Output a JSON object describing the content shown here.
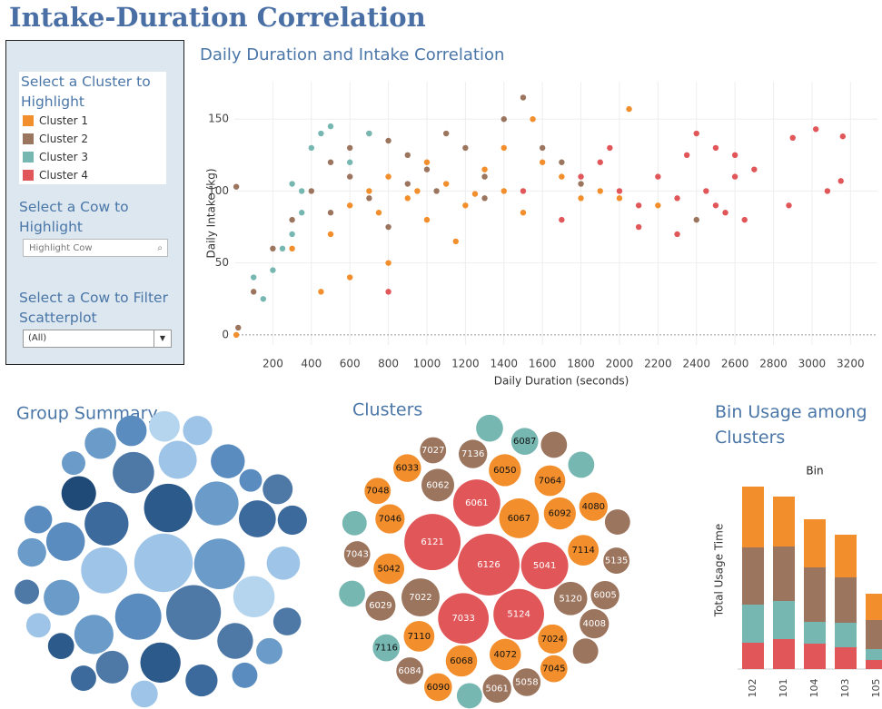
{
  "header": {
    "title": "Intake-Duration Correlation"
  },
  "filters": {
    "cluster_title": "Select a Cluster to Highlight",
    "cow_highlight_title": "Select a Cow to Highlight",
    "search_placeholder": "Highlight Cow",
    "filter_title": "Select a Cow to Filter Scatterplot",
    "filter_value": "(All)"
  },
  "chart_data": [
    {
      "type": "scatter",
      "title": "Daily Duration and Intake Correlation",
      "x_label": "Daily Duration (seconds)",
      "y_label": "Daily Intake (kg)",
      "xlim": [
        0,
        3340
      ],
      "ylim": [
        -7,
        176
      ],
      "xticks": [
        200,
        400,
        600,
        800,
        1000,
        1200,
        1400,
        1600,
        1800,
        2000,
        2200,
        2400,
        2600,
        2800,
        3000,
        3200
      ],
      "yticks": [
        0,
        50,
        100,
        150
      ],
      "grid": true,
      "series": [
        {
          "name": "Cluster 1",
          "color": "#f28e2b",
          "x": [
            10,
            300,
            500,
            600,
            700,
            800,
            900,
            1000,
            1100,
            1200,
            1300,
            1400,
            1500,
            1600,
            1700,
            1800,
            1900,
            2000,
            2050,
            1550,
            800,
            1000,
            600,
            1150,
            1400,
            2200,
            450,
            750,
            950,
            1250
          ],
          "values": [
            0,
            60,
            70,
            90,
            100,
            110,
            95,
            120,
            105,
            90,
            115,
            100,
            85,
            120,
            110,
            95,
            100,
            95,
            157,
            150,
            50,
            80,
            40,
            65,
            130,
            90,
            30,
            85,
            100,
            98
          ]
        },
        {
          "name": "Cluster 2",
          "color": "#9c755f",
          "x": [
            20,
            100,
            200,
            300,
            400,
            500,
            600,
            700,
            800,
            900,
            1000,
            1100,
            1200,
            1300,
            1400,
            1500,
            1600,
            1700,
            500,
            700,
            900,
            600,
            1800,
            2400,
            10,
            1050,
            800,
            1300
          ],
          "values": [
            5,
            30,
            60,
            80,
            100,
            120,
            130,
            140,
            135,
            125,
            115,
            140,
            130,
            110,
            150,
            165,
            130,
            120,
            85,
            95,
            105,
            110,
            105,
            80,
            103,
            100,
            75,
            95
          ]
        },
        {
          "name": "Cluster 3",
          "color": "#76b7b2",
          "x": [
            100,
            200,
            300,
            350,
            400,
            450,
            300,
            500,
            250,
            600,
            350,
            150,
            700
          ],
          "values": [
            40,
            45,
            70,
            100,
            130,
            140,
            105,
            145,
            60,
            120,
            85,
            25,
            140
          ]
        },
        {
          "name": "Cluster 4",
          "color": "#e15759",
          "x": [
            800,
            1500,
            1700,
            1800,
            1900,
            2000,
            2100,
            2200,
            2300,
            2350,
            2400,
            2450,
            2500,
            2550,
            2600,
            2650,
            2700,
            2500,
            2300,
            2900,
            2880,
            3020,
            3080,
            3160,
            3150,
            2100,
            1950,
            2600
          ],
          "values": [
            30,
            100,
            80,
            110,
            120,
            100,
            90,
            110,
            95,
            125,
            140,
            100,
            130,
            85,
            110,
            80,
            115,
            90,
            70,
            137,
            90,
            143,
            100,
            138,
            107,
            75,
            130,
            125
          ]
        }
      ]
    },
    {
      "type": "bubble",
      "title": "Group Summary",
      "values": [
        80,
        70,
        60,
        55,
        50,
        50,
        45,
        45,
        40,
        40,
        38,
        36,
        35,
        34,
        32,
        30,
        30,
        28,
        27,
        26,
        25,
        24,
        23,
        22,
        22,
        21,
        20,
        20,
        19,
        18,
        18,
        17,
        16,
        16,
        15,
        15,
        14,
        14,
        13,
        12
      ],
      "colors": [
        "#9ec5e8",
        "#4e79a7",
        "#6b9bc8",
        "#2c5a8a",
        "#5b8cbf",
        "#9ec5e8",
        "#3d6a9c",
        "#6b9bc8",
        "#4e79a7",
        "#b5d5ef",
        "#2c5a8a",
        "#6b9bc8",
        "#5b8cbf",
        "#9ec5e8",
        "#3d6a9c",
        "#4e79a7",
        "#6b9bc8",
        "#1f4a78",
        "#5b8cbf",
        "#9ec5e8",
        "#4e79a7",
        "#3d6a9c",
        "#6b9bc8",
        "#5b8cbf",
        "#b5d5ef",
        "#4e79a7",
        "#9ec5e8",
        "#3d6a9c",
        "#6b9bc8",
        "#5b8cbf",
        "#4e79a7",
        "#9ec5e8",
        "#2c5a8a",
        "#6b9bc8",
        "#5b8cbf",
        "#3d6a9c",
        "#9ec5e8",
        "#4e79a7",
        "#6b9bc8",
        "#5b8cbf"
      ]
    },
    {
      "type": "bubble",
      "title": "Clusters",
      "categories": [
        "6126",
        "6121",
        "5124",
        "7033",
        "5041",
        "6061",
        "6067",
        "7022",
        "6092",
        "5120",
        "6062",
        "4072",
        "6050",
        "7114",
        "6068",
        "7110",
        "5042",
        "7024",
        "7064",
        "7046",
        "7136",
        "6029",
        "4080",
        "6005",
        "4008",
        "5058",
        "5061",
        "6033",
        "7045",
        "7027",
        "6087",
        "5135",
        "6090",
        "6084",
        "7116",
        "7043",
        "7048",
        null,
        null,
        null,
        null,
        null,
        null,
        null,
        null
      ],
      "values": [
        89,
        74,
        60,
        60,
        52,
        52,
        37,
        34,
        24,
        26,
        25,
        23,
        24,
        22,
        23,
        22,
        22,
        20,
        22,
        20,
        19,
        21,
        19,
        19,
        20,
        18,
        19,
        18,
        17,
        16,
        17,
        16,
        18,
        17,
        17,
        16,
        16,
        17,
        16,
        16,
        15,
        15,
        16,
        15,
        14
      ],
      "colors": [
        "#e15759",
        "#e15759",
        "#e15759",
        "#e15759",
        "#e15759",
        "#e15759",
        "#f28e2b",
        "#9c755f",
        "#f28e2b",
        "#9c755f",
        "#9c755f",
        "#f28e2b",
        "#f28e2b",
        "#f28e2b",
        "#f28e2b",
        "#f28e2b",
        "#f28e2b",
        "#f28e2b",
        "#f28e2b",
        "#f28e2b",
        "#9c755f",
        "#9c755f",
        "#f28e2b",
        "#9c755f",
        "#9c755f",
        "#9c755f",
        "#9c755f",
        "#f28e2b",
        "#f28e2b",
        "#9c755f",
        "#76b7b2",
        "#9c755f",
        "#f28e2b",
        "#9c755f",
        "#76b7b2",
        "#9c755f",
        "#f28e2b",
        "#76b7b2",
        "#9c755f",
        "#76b7b2",
        "#9c755f",
        "#76b7b2",
        "#76b7b2",
        "#9c755f",
        "#76b7b2"
      ]
    },
    {
      "type": "stacked-bar",
      "title": "Bin Usage among Clusters",
      "subtitle": "Bin",
      "y_label": "Total Usage Time",
      "categories": [
        "102",
        "101",
        "104",
        "103",
        "105"
      ],
      "ylim": [
        0,
        220
      ],
      "series": [
        {
          "name": "Cluster 1",
          "color": "#f28e2b",
          "values": [
            67,
            55,
            53,
            47,
            29
          ]
        },
        {
          "name": "Cluster 2",
          "color": "#9c755f",
          "values": [
            63,
            60,
            60,
            50,
            32
          ]
        },
        {
          "name": "Cluster 3",
          "color": "#76b7b2",
          "values": [
            42,
            42,
            24,
            27,
            12
          ]
        },
        {
          "name": "Cluster 4",
          "color": "#e15759",
          "values": [
            29,
            33,
            28,
            24,
            10
          ]
        }
      ]
    }
  ]
}
